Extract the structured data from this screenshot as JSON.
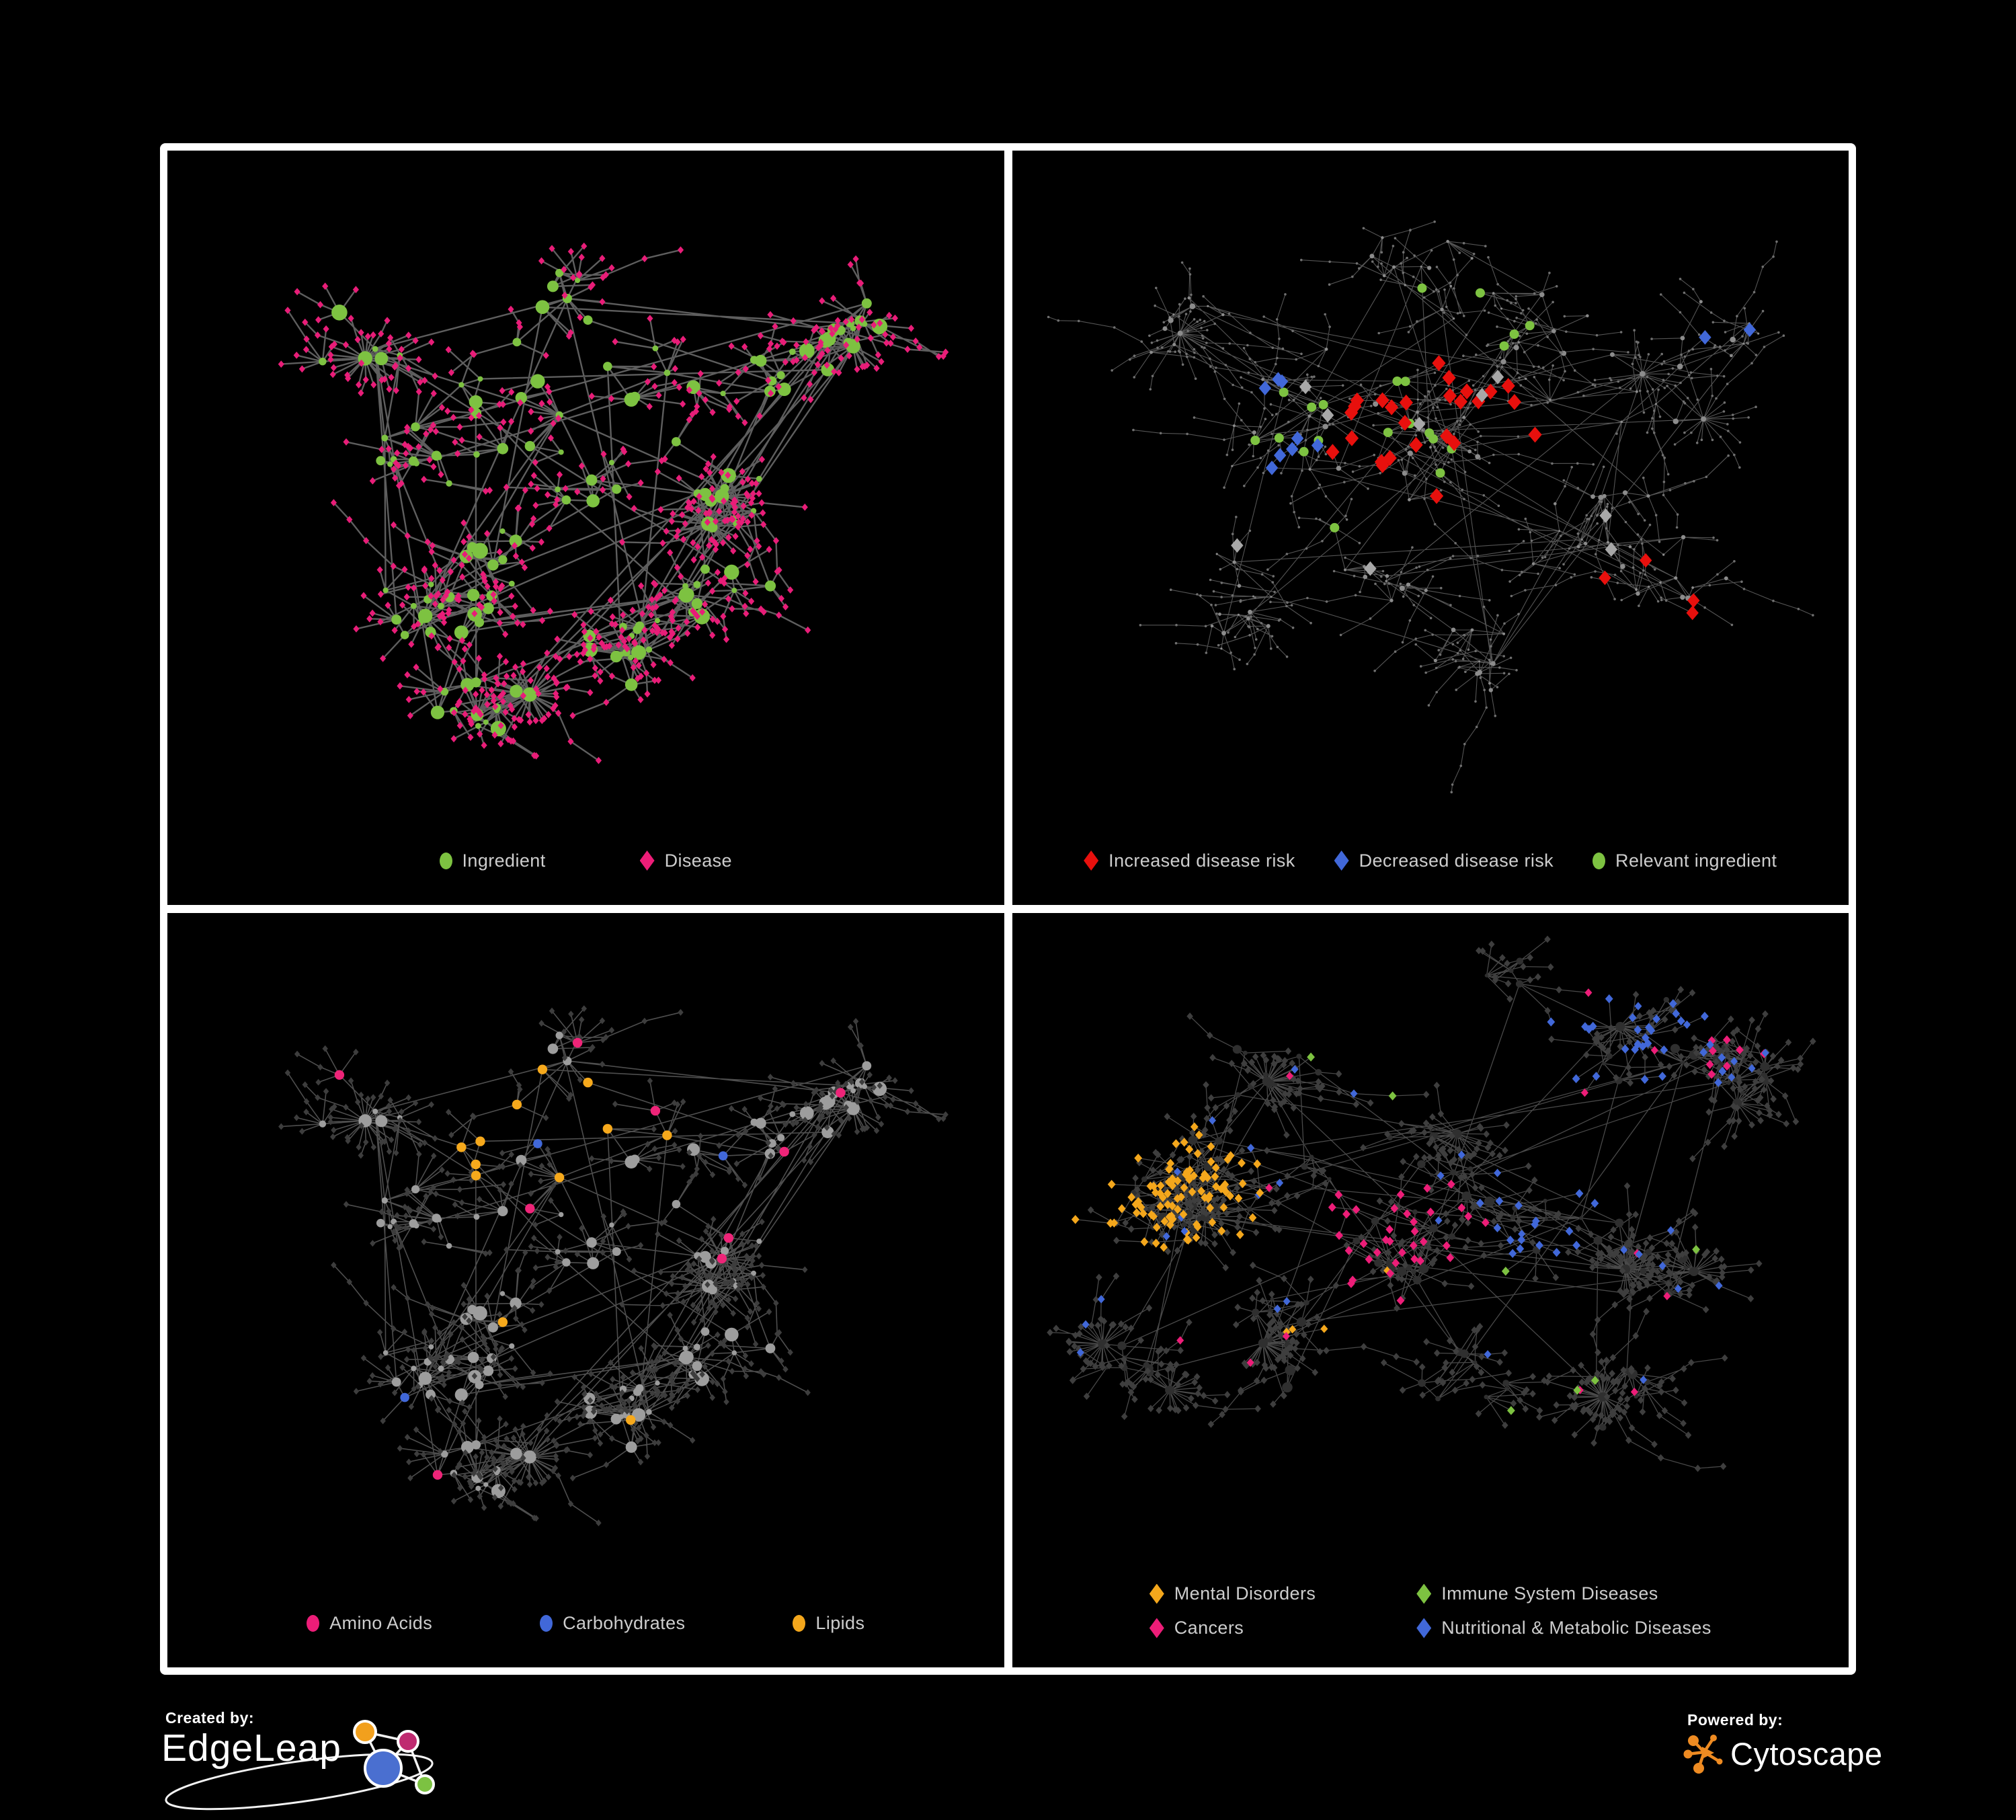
{
  "figure": {
    "background": "#000000",
    "frame_color": "#ffffff"
  },
  "palette": {
    "green": "#7dc241",
    "pink": "#ed1d78",
    "red": "#e8100d",
    "blue": "#4168d9",
    "orange": "#f4a71c",
    "gray": "#9d9d9d",
    "dark_gray": "#3e3e3e",
    "edge_gray": "#6f6f6f",
    "legend_text": "#cdcdcd"
  },
  "footer": {
    "created_by": {
      "label": "Created by:",
      "brand": "EdgeLeap"
    },
    "powered_by": {
      "label": "Powered by:",
      "brand": "Cytoscape"
    }
  },
  "panels": [
    {
      "name": "ingredient-disease",
      "legend_layout": "row",
      "legend_items": [
        {
          "label": "Ingredient",
          "shape": "circle",
          "color": "#7dc241"
        },
        {
          "label": "Disease",
          "shape": "diamond",
          "color": "#ed1d78"
        }
      ],
      "network": {
        "seed": 9101,
        "hubs": 148,
        "maxFan": 7,
        "starProb": 0.05,
        "leafR": 0.044,
        "chainProb": 0.16,
        "centers": [
          [
            0.4,
            0.36,
            0.1
          ],
          [
            0.3,
            0.45,
            0.08
          ],
          [
            0.51,
            0.46,
            0.09
          ],
          [
            0.4,
            0.6,
            0.08
          ],
          [
            0.61,
            0.33,
            0.07
          ],
          [
            0.68,
            0.52,
            0.06
          ],
          [
            0.3,
            0.7,
            0.06
          ],
          [
            0.55,
            0.75,
            0.06
          ],
          [
            0.75,
            0.3,
            0.05
          ],
          [
            0.22,
            0.28,
            0.06
          ],
          [
            0.47,
            0.2,
            0.06
          ],
          [
            0.66,
            0.66,
            0.05
          ],
          [
            0.83,
            0.25,
            0.04
          ],
          [
            0.36,
            0.84,
            0.05
          ]
        ],
        "edge": {
          "color": "#6f6f6f",
          "width": 2.4,
          "opacity": 0.85
        },
        "hub": {
          "shape": "circle",
          "color": "#7dc241",
          "size": 7.2
        },
        "leaf": {
          "shape": "diamond",
          "color": "#e81d78",
          "size": 5.0
        },
        "rules": []
      }
    },
    {
      "name": "disease-risk",
      "legend_layout": "row",
      "legend_items": [
        {
          "label": "Increased disease risk",
          "shape": "diamond",
          "color": "#e8100d"
        },
        {
          "label": "Decreased disease risk",
          "shape": "diamond",
          "color": "#4168d9"
        },
        {
          "label": "Relevant ingredient",
          "shape": "circle",
          "color": "#7dc241"
        }
      ],
      "network": {
        "seed": 7202,
        "hubs": 150,
        "maxFan": 5,
        "starProb": 0.035,
        "leafR": 0.037,
        "chainProb": 0.48,
        "centers": [
          [
            0.42,
            0.36,
            0.11
          ],
          [
            0.28,
            0.42,
            0.08
          ],
          [
            0.52,
            0.42,
            0.09
          ],
          [
            0.42,
            0.62,
            0.09
          ],
          [
            0.63,
            0.3,
            0.08
          ],
          [
            0.7,
            0.56,
            0.08
          ],
          [
            0.26,
            0.68,
            0.07
          ],
          [
            0.56,
            0.77,
            0.07
          ],
          [
            0.79,
            0.36,
            0.07
          ],
          [
            0.2,
            0.25,
            0.06
          ],
          [
            0.5,
            0.16,
            0.07
          ],
          [
            0.81,
            0.66,
            0.06
          ],
          [
            0.87,
            0.26,
            0.05
          ],
          [
            0.52,
            0.42,
            0.07
          ]
        ],
        "edge": {
          "color": "#585858",
          "width": 1.1,
          "opacity": 0.95
        },
        "hub": {
          "shape": "circle",
          "color": "#8c8c8c",
          "size": 2.7
        },
        "leaf": {
          "shape": "circle",
          "color": "#707070",
          "size": 1.8
        },
        "rules": [
          {
            "id": "red-core",
            "target": "leaf",
            "at": [
              0.52,
              0.41
            ],
            "r": 0.15,
            "prob": 0.3,
            "max": 26,
            "shape": "diamond",
            "color": "#e8100d",
            "size": 11
          },
          {
            "id": "red-outlier",
            "target": "leaf",
            "at": [
              0.77,
              0.67
            ],
            "r": 0.07,
            "prob": 0.5,
            "max": 4,
            "shape": "diamond",
            "color": "#e8100d",
            "size": 10
          },
          {
            "id": "blue-left",
            "target": "leaf",
            "at": [
              0.29,
              0.4
            ],
            "r": 0.075,
            "prob": 0.5,
            "max": 8,
            "shape": "diamond",
            "color": "#4168d9",
            "size": 10
          },
          {
            "id": "blue-right",
            "target": "leaf",
            "at": [
              0.87,
              0.26
            ],
            "r": 0.045,
            "prob": 1.0,
            "max": 2,
            "shape": "diamond",
            "color": "#4168d9",
            "size": 10
          },
          {
            "id": "gray-unchanged",
            "target": "leaf",
            "at": [
              0.48,
              0.45
            ],
            "r": 0.3,
            "prob": 0.035,
            "max": 9,
            "shape": "diamond",
            "color": "#a8a8a8",
            "size": 10
          },
          {
            "id": "green-relevant",
            "target": "hub",
            "at": [
              0.46,
              0.4
            ],
            "r": 0.23,
            "prob": 0.45,
            "max": 38,
            "shape": "circle",
            "color": "#7dc241",
            "size": 7
          }
        ]
      }
    },
    {
      "name": "macronutrients",
      "legend_layout": "row",
      "legend_items": [
        {
          "label": "Amino Acids",
          "shape": "circle",
          "color": "#ed1d78"
        },
        {
          "label": "Carbohydrates",
          "shape": "circle",
          "color": "#4168d9"
        },
        {
          "label": "Lipids",
          "shape": "circle",
          "color": "#f4a71c"
        }
      ],
      "network": {
        "seed": 9101,
        "hubs": 148,
        "maxFan": 7,
        "starProb": 0.05,
        "leafR": 0.044,
        "chainProb": 0.16,
        "centers": [
          [
            0.4,
            0.36,
            0.1
          ],
          [
            0.3,
            0.45,
            0.08
          ],
          [
            0.51,
            0.46,
            0.09
          ],
          [
            0.4,
            0.6,
            0.08
          ],
          [
            0.61,
            0.33,
            0.07
          ],
          [
            0.68,
            0.52,
            0.06
          ],
          [
            0.3,
            0.7,
            0.06
          ],
          [
            0.55,
            0.75,
            0.06
          ],
          [
            0.75,
            0.3,
            0.05
          ],
          [
            0.22,
            0.28,
            0.06
          ],
          [
            0.47,
            0.2,
            0.06
          ],
          [
            0.66,
            0.66,
            0.05
          ],
          [
            0.83,
            0.25,
            0.04
          ],
          [
            0.36,
            0.84,
            0.05
          ]
        ],
        "edge": {
          "color": "#565656",
          "width": 1.6,
          "opacity": 0.9
        },
        "hub": {
          "shape": "circle",
          "color": "#9d9d9d",
          "size": 6.6
        },
        "leaf": {
          "shape": "diamond",
          "color": "#3d3d3d",
          "size": 4.6
        },
        "rules": [
          {
            "id": "lipids-cluster",
            "target": "hub",
            "at": [
              0.41,
              0.31
            ],
            "r": 0.12,
            "prob": 0.55,
            "max": 42,
            "shape": "circle",
            "color": "#f6a91c",
            "size": 7.2
          },
          {
            "id": "carbs-cluster",
            "target": "hub",
            "at": [
              0.46,
              0.35
            ],
            "r": 0.05,
            "prob": 0.85,
            "max": 11,
            "shape": "circle",
            "color": "#4168d9",
            "size": 6.8
          },
          {
            "id": "lipids-scatter",
            "target": "hub",
            "at": [
              0.5,
              0.55
            ],
            "r": 0.55,
            "prob": 0.06,
            "max": 26,
            "shape": "circle",
            "color": "#f6a91c",
            "size": 7.2
          },
          {
            "id": "carbs-scatter",
            "target": "hub",
            "at": [
              0.5,
              0.5
            ],
            "r": 0.6,
            "prob": 0.015,
            "max": 6,
            "shape": "circle",
            "color": "#4168d9",
            "size": 6.8
          },
          {
            "id": "amino-scatter",
            "target": "hub",
            "at": [
              0.5,
              0.5
            ],
            "r": 0.65,
            "prob": 0.05,
            "max": 20,
            "shape": "circle",
            "color": "#ee2478",
            "size": 7.2
          }
        ]
      }
    },
    {
      "name": "disease-categories",
      "legend_layout": "grid",
      "legend_items": [
        {
          "label": "Mental Disorders",
          "shape": "diamond",
          "color": "#f4a71c"
        },
        {
          "label": "Immune System Diseases",
          "shape": "diamond",
          "color": "#7dc241"
        },
        {
          "label": "Cancers",
          "shape": "diamond",
          "color": "#ed1d78"
        },
        {
          "label": "Nutritional & Metabolic Diseases",
          "shape": "diamond",
          "color": "#4168d9"
        }
      ],
      "network": {
        "seed": 6404,
        "hubs": 165,
        "maxFan": 7,
        "starProb": 0.05,
        "leafR": 0.04,
        "chainProb": 0.28,
        "centers": [
          [
            0.17,
            0.44,
            0.06
          ],
          [
            0.17,
            0.45,
            0.05
          ],
          [
            0.2,
            0.4,
            0.06
          ],
          [
            0.46,
            0.52,
            0.07
          ],
          [
            0.46,
            0.5,
            0.06
          ],
          [
            0.4,
            0.36,
            0.09
          ],
          [
            0.55,
            0.4,
            0.08
          ],
          [
            0.64,
            0.47,
            0.07
          ],
          [
            0.72,
            0.2,
            0.09
          ],
          [
            0.3,
            0.66,
            0.07
          ],
          [
            0.55,
            0.72,
            0.07
          ],
          [
            0.78,
            0.55,
            0.06
          ],
          [
            0.88,
            0.22,
            0.05
          ],
          [
            0.3,
            0.22,
            0.07
          ],
          [
            0.6,
            0.08,
            0.06
          ],
          [
            0.75,
            0.75,
            0.06
          ],
          [
            0.12,
            0.7,
            0.05
          ]
        ],
        "edge": {
          "color": "#4d4d4d",
          "width": 1.3,
          "opacity": 0.95
        },
        "hub": {
          "shape": "circle",
          "color": "#2f2f2f",
          "size": 4.8
        },
        "leaf": {
          "shape": "diamond",
          "color": "#3e3e3e",
          "size": 5.2
        },
        "rules": [
          {
            "id": "mental-cluster",
            "target": "leaf",
            "at": [
              0.17,
              0.44
            ],
            "r": 0.13,
            "prob": 0.75,
            "max": 95,
            "shape": "diamond",
            "color": "#f4a71c",
            "size": 6.4
          },
          {
            "id": "mental-scatter",
            "target": "leaf",
            "at": [
              0.35,
              0.6
            ],
            "r": 0.12,
            "prob": 0.06,
            "max": 8,
            "shape": "diamond",
            "color": "#f4a71c",
            "size": 6.0
          },
          {
            "id": "cancer-cluster",
            "target": "leaf",
            "at": [
              0.46,
              0.51
            ],
            "r": 0.12,
            "prob": 0.45,
            "max": 55,
            "shape": "diamond",
            "color": "#ed1d78",
            "size": 6.4
          },
          {
            "id": "cancer-topright",
            "target": "leaf",
            "at": [
              0.88,
              0.22
            ],
            "r": 0.05,
            "prob": 0.85,
            "max": 8,
            "shape": "diamond",
            "color": "#ed1d78",
            "size": 6.4
          },
          {
            "id": "nmd-cluster",
            "target": "leaf",
            "at": [
              0.64,
              0.47
            ],
            "r": 0.09,
            "prob": 0.55,
            "max": 28,
            "shape": "diamond",
            "color": "#4168d9",
            "size": 6.4
          },
          {
            "id": "nmd-topright",
            "target": "leaf",
            "at": [
              0.72,
              0.2
            ],
            "r": 0.17,
            "prob": 0.35,
            "max": 30,
            "shape": "diamond",
            "color": "#4168d9",
            "size": 6.4
          },
          {
            "id": "nmd-scatter",
            "target": "leaf",
            "at": [
              0.45,
              0.45
            ],
            "r": 0.6,
            "prob": 0.04,
            "max": 40,
            "shape": "diamond",
            "color": "#4168d9",
            "size": 6.0
          },
          {
            "id": "immune-scatter",
            "target": "leaf",
            "at": [
              0.5,
              0.45
            ],
            "r": 0.35,
            "prob": 0.015,
            "max": 10,
            "shape": "diamond",
            "color": "#7dc241",
            "size": 6.4
          },
          {
            "id": "cancer-scatter",
            "target": "leaf",
            "at": [
              0.5,
              0.6
            ],
            "r": 0.55,
            "prob": 0.02,
            "max": 12,
            "shape": "diamond",
            "color": "#ed1d78",
            "size": 6.0
          }
        ]
      }
    }
  ]
}
